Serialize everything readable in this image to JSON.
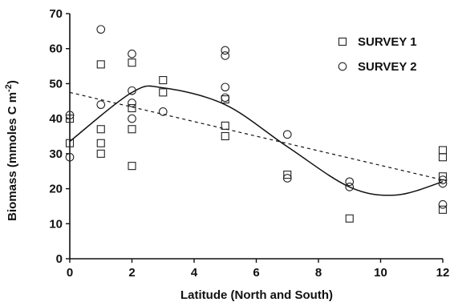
{
  "chart_data": {
    "type": "scatter",
    "title": "",
    "xlabel": "Latitude (North and South)",
    "ylabel": "Biomass (mmoles C m",
    "ylabel_sup": "-2",
    "ylabel_close": ")",
    "xlim": [
      0,
      12
    ],
    "ylim": [
      0,
      70
    ],
    "xticks": [
      0,
      2,
      4,
      6,
      8,
      10,
      12
    ],
    "yticks": [
      0,
      10,
      20,
      30,
      40,
      50,
      60,
      70
    ],
    "grid": false,
    "legend": "top-right",
    "series": [
      {
        "name": "SURVEY 1",
        "marker": "square",
        "points": [
          [
            0,
            33
          ],
          [
            0,
            40
          ],
          [
            1,
            30
          ],
          [
            1,
            33
          ],
          [
            1,
            37
          ],
          [
            1,
            55.5
          ],
          [
            2,
            26.5
          ],
          [
            2,
            37
          ],
          [
            2,
            43
          ],
          [
            2,
            56
          ],
          [
            3,
            47.5
          ],
          [
            3,
            51
          ],
          [
            5,
            35
          ],
          [
            5,
            38
          ],
          [
            5,
            45.5
          ],
          [
            7,
            24
          ],
          [
            9,
            11.5
          ],
          [
            12,
            14
          ],
          [
            12,
            23.5
          ],
          [
            12,
            29
          ],
          [
            12,
            31
          ]
        ]
      },
      {
        "name": "SURVEY 2",
        "marker": "circle",
        "points": [
          [
            0,
            29
          ],
          [
            0,
            41
          ],
          [
            1,
            44
          ],
          [
            1,
            65.5
          ],
          [
            2,
            40
          ],
          [
            2,
            44.5
          ],
          [
            2,
            48
          ],
          [
            2,
            58.5
          ],
          [
            3,
            42
          ],
          [
            5,
            46
          ],
          [
            5,
            49
          ],
          [
            5,
            58
          ],
          [
            5,
            59.5
          ],
          [
            7,
            23
          ],
          [
            7,
            35.5
          ],
          [
            9,
            20.5
          ],
          [
            9,
            22
          ],
          [
            12,
            15.5
          ],
          [
            12,
            21.5
          ],
          [
            12,
            22.5
          ]
        ]
      }
    ],
    "fits": [
      {
        "style": "solid",
        "kind": "cubic",
        "points": [
          [
            0,
            33.5
          ],
          [
            2,
            47.5
          ],
          [
            3,
            48.8
          ],
          [
            5,
            44
          ],
          [
            7,
            32
          ],
          [
            9,
            20.5
          ],
          [
            10.5,
            18.2
          ],
          [
            12,
            22
          ]
        ]
      },
      {
        "style": "dashed",
        "kind": "linear",
        "points": [
          [
            0,
            47.5
          ],
          [
            12,
            22.5
          ]
        ]
      }
    ]
  }
}
